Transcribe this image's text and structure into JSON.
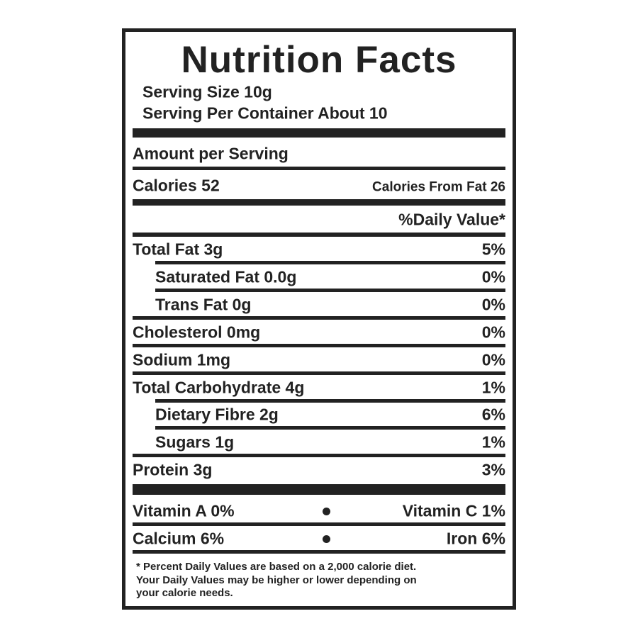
{
  "title": "Nutrition Facts",
  "serving": [
    "Serving Size 10g",
    "Serving Per Container About 10"
  ],
  "amount_per_serving": "Amount per Serving",
  "calories": "Calories 52",
  "calories_from_fat": "Calories From Fat 26",
  "daily_value_header": "%Daily Value*",
  "nutrients": [
    {
      "label": "Total Fat 3g",
      "dv": "5%",
      "indent": false
    },
    {
      "label": "Saturated Fat 0.0g",
      "dv": "0%",
      "indent": true
    },
    {
      "label": "Trans Fat 0g",
      "dv": "0%",
      "indent": true
    },
    {
      "label": "Cholesterol 0mg",
      "dv": "0%",
      "indent": false
    },
    {
      "label": "Sodium 1mg",
      "dv": "0%",
      "indent": false
    },
    {
      "label": "Total Carbohydrate 4g",
      "dv": "1%",
      "indent": false
    },
    {
      "label": "Dietary Fibre 2g",
      "dv": "6%",
      "indent": true
    },
    {
      "label": "Sugars 1g",
      "dv": "1%",
      "indent": true
    },
    {
      "label": "Protein 3g",
      "dv": "3%",
      "indent": false
    }
  ],
  "vitamins": [
    [
      "Vitamin A 0%",
      "Vitamin C 1%"
    ],
    [
      "Calcium 6%",
      "Iron 6%"
    ]
  ],
  "footnote": [
    "* Percent Daily Values are based on a 2,000 calorie diet.",
    "Your Daily Values may be higher or lower depending on",
    "your calorie needs."
  ]
}
